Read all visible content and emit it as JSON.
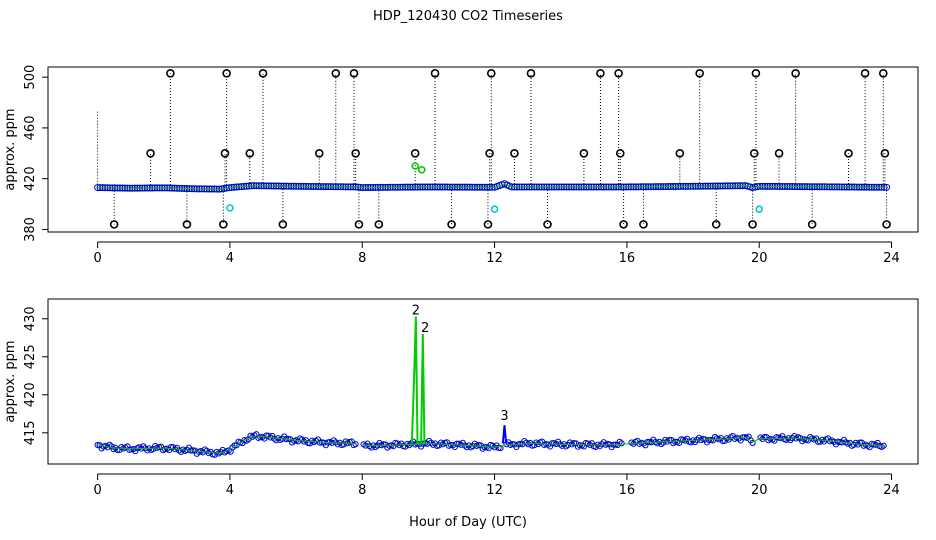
{
  "title": "HDP_120430  CO2 Timeseries",
  "xlabel": "Hour of Day (UTC)",
  "colors": {
    "qc1": "#000000",
    "qc2": "#00cc00",
    "qc3": "#0000ff",
    "valid": "#0000cc",
    "fill": "#00cc00",
    "cyan": "#00cccc"
  },
  "chart_data": [
    {
      "type": "scatter",
      "title": "",
      "xlabel": "",
      "ylabel": "approx. ppm",
      "xlim": [
        -1.5,
        24.8
      ],
      "ylim": [
        378,
        508
      ],
      "xticks": [
        0,
        4,
        8,
        12,
        16,
        20,
        24
      ],
      "yticks": [
        380,
        420,
        460,
        500
      ],
      "grid": false,
      "series": [
        {
          "baseline": [
            [
              0,
              413
            ],
            [
              1,
              412.5
            ],
            [
              2,
              412.8
            ],
            [
              3,
              412
            ],
            [
              3.7,
              411.8
            ],
            [
              4,
              413
            ],
            [
              4.7,
              414.5
            ],
            [
              6,
              414
            ],
            [
              7.8,
              413.5
            ],
            [
              8,
              413
            ],
            [
              10,
              413.5
            ],
            [
              12,
              413.2
            ],
            [
              12.3,
              416
            ],
            [
              12.5,
              413.5
            ],
            [
              16,
              413.5
            ],
            [
              18,
              414
            ],
            [
              19.6,
              414.5
            ],
            [
              19.8,
              413
            ],
            [
              20,
              414
            ],
            [
              22,
              413.6
            ],
            [
              23.8,
              413.2
            ]
          ]
        },
        {
          "spikes": [
            {
              "x": 0.0,
              "y": 473,
              "m": false
            },
            {
              "x": 0.5,
              "y": 384,
              "m": true
            },
            {
              "x": 1.6,
              "y": 440,
              "m": true
            },
            {
              "x": 2.2,
              "y": 503,
              "m": true
            },
            {
              "x": 2.7,
              "y": 384,
              "m": true
            },
            {
              "x": 3.8,
              "y": 384,
              "m": true
            },
            {
              "x": 3.85,
              "y": 440,
              "m": true
            },
            {
              "x": 3.9,
              "y": 503,
              "m": true
            },
            {
              "x": 4.6,
              "y": 440,
              "m": true
            },
            {
              "x": 5.0,
              "y": 503,
              "m": true
            },
            {
              "x": 5.6,
              "y": 384,
              "m": true
            },
            {
              "x": 6.7,
              "y": 440,
              "m": true
            },
            {
              "x": 7.2,
              "y": 503,
              "m": true
            },
            {
              "x": 7.75,
              "y": 503,
              "m": true
            },
            {
              "x": 7.8,
              "y": 440,
              "m": true
            },
            {
              "x": 7.9,
              "y": 384,
              "m": true
            },
            {
              "x": 8.5,
              "y": 384,
              "m": true
            },
            {
              "x": 9.6,
              "y": 440,
              "m": true
            },
            {
              "x": 10.2,
              "y": 503,
              "m": true
            },
            {
              "x": 10.7,
              "y": 384,
              "m": true
            },
            {
              "x": 11.8,
              "y": 384,
              "m": true
            },
            {
              "x": 11.85,
              "y": 440,
              "m": true
            },
            {
              "x": 11.9,
              "y": 503,
              "m": true
            },
            {
              "x": 12.6,
              "y": 440,
              "m": true
            },
            {
              "x": 13.1,
              "y": 503,
              "m": true
            },
            {
              "x": 13.6,
              "y": 384,
              "m": true
            },
            {
              "x": 14.7,
              "y": 440,
              "m": true
            },
            {
              "x": 15.2,
              "y": 503,
              "m": true
            },
            {
              "x": 15.75,
              "y": 503,
              "m": true
            },
            {
              "x": 15.8,
              "y": 440,
              "m": true
            },
            {
              "x": 15.9,
              "y": 384,
              "m": true
            },
            {
              "x": 16.5,
              "y": 384,
              "m": true
            },
            {
              "x": 17.6,
              "y": 440,
              "m": true
            },
            {
              "x": 18.2,
              "y": 503,
              "m": true
            },
            {
              "x": 18.7,
              "y": 384,
              "m": true
            },
            {
              "x": 19.8,
              "y": 384,
              "m": true
            },
            {
              "x": 19.85,
              "y": 440,
              "m": true
            },
            {
              "x": 19.9,
              "y": 503,
              "m": true
            },
            {
              "x": 20.6,
              "y": 440,
              "m": true
            },
            {
              "x": 21.1,
              "y": 503,
              "m": true
            },
            {
              "x": 21.6,
              "y": 384,
              "m": true
            },
            {
              "x": 22.7,
              "y": 440,
              "m": true
            },
            {
              "x": 23.2,
              "y": 503,
              "m": true
            },
            {
              "x": 23.75,
              "y": 503,
              "m": true
            },
            {
              "x": 23.8,
              "y": 440,
              "m": true
            },
            {
              "x": 23.85,
              "y": 384,
              "m": true
            }
          ]
        },
        {
          "cyan_points": [
            [
              4.0,
              397
            ],
            [
              12.0,
              396
            ],
            [
              20.0,
              396
            ]
          ],
          "green_points": [
            [
              9.6,
              430
            ],
            [
              9.8,
              427
            ]
          ]
        }
      ]
    },
    {
      "type": "line",
      "title": "",
      "xlabel": "Hour of Day (UTC)",
      "ylabel": "approx. ppm",
      "xlim": [
        -1.5,
        24.8
      ],
      "ylim": [
        410.9,
        432.6
      ],
      "xticks": [
        0,
        4,
        8,
        12,
        16,
        20,
        24
      ],
      "yticks": [
        415,
        420,
        425,
        430
      ],
      "grid": false,
      "series": [
        {
          "baseline": [
            [
              0,
              413.4
            ],
            [
              0.5,
              413
            ],
            [
              1,
              412.9
            ],
            [
              2,
              413
            ],
            [
              3,
              412.6
            ],
            [
              3.7,
              412.3
            ],
            [
              4,
              412.8
            ],
            [
              4.5,
              414.2
            ],
            [
              4.8,
              414.6
            ],
            [
              6,
              414
            ],
            [
              7,
              413.7
            ],
            [
              7.8,
              413.6
            ]
          ],
          "gaps": [
            [
              7.8,
              8.0
            ],
            [
              12.2,
              12.35
            ],
            [
              15.9,
              16.1
            ],
            [
              19.8,
              20.0
            ]
          ]
        },
        {
          "baseline_b": [
            [
              8.0,
              413.3
            ],
            [
              9,
              413.4
            ],
            [
              10,
              413.6
            ],
            [
              11,
              413.4
            ],
            [
              12,
              413.1
            ],
            [
              12.35,
              413.4
            ],
            [
              13,
              413.6
            ],
            [
              14,
              413.5
            ],
            [
              15,
              413.4
            ],
            [
              15.9,
              413.5
            ],
            [
              16.1,
              413.6
            ],
            [
              17,
              413.8
            ],
            [
              18,
              414
            ],
            [
              19,
              414.2
            ],
            [
              19.6,
              414.4
            ],
            [
              19.8,
              413.8
            ],
            [
              20,
              414.2
            ],
            [
              21,
              414.3
            ],
            [
              22,
              414
            ],
            [
              23,
              413.5
            ],
            [
              23.8,
              413.3
            ]
          ]
        },
        {
          "spike_green": [
            [
              9.5,
              413.6
            ],
            [
              9.58,
              424
            ],
            [
              9.62,
              430.3
            ],
            [
              9.67,
              413.6
            ],
            [
              9.78,
              413.6
            ],
            [
              9.83,
              428
            ],
            [
              9.88,
              413.6
            ]
          ],
          "spike_blue": [
            [
              12.25,
              413.6
            ],
            [
              12.3,
              416
            ],
            [
              12.35,
              413.6
            ]
          ],
          "labels": [
            {
              "x": 9.62,
              "y": 430.3,
              "text": "2",
              "color": "#00cc00"
            },
            {
              "x": 9.9,
              "y": 428,
              "text": "2",
              "color": "#00cc00"
            },
            {
              "x": 12.3,
              "y": 416.4,
              "text": "3",
              "color": "#0000ff"
            }
          ]
        }
      ]
    }
  ]
}
